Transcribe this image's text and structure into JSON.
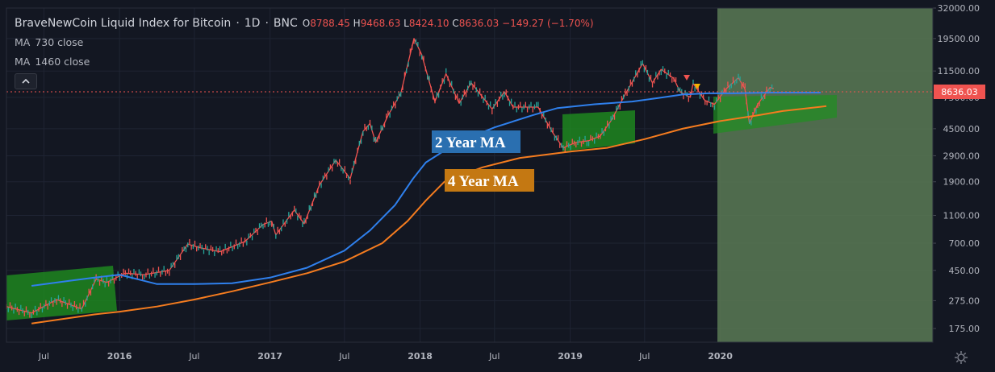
{
  "header": {
    "title": "BraveNewCoin Liquid Index for Bitcoin",
    "sep": "·",
    "interval": "1D",
    "exchange": "BNC",
    "ohlc": {
      "o_label": "O",
      "o_value": "8788.45",
      "h_label": "H",
      "h_value": "9468.63",
      "l_label": "L",
      "l_value": "8424.10",
      "c_label": "C",
      "c_value": "8636.03",
      "change": "−149.27 (−1.70%)"
    }
  },
  "indicators": [
    {
      "label": "MA",
      "params": "730 close"
    },
    {
      "label": "MA",
      "params": "1460 close"
    }
  ],
  "annotations": {
    "ma2": "2 Year MA",
    "ma4": "4 Year MA"
  },
  "price_tag": "8636.03",
  "colors": {
    "background": "#131722",
    "grid": "#1f2433",
    "ma730": "#2f80ed",
    "ma1460": "#f57c1f",
    "up_candle": "#26a69a",
    "down_candle": "#ef5350",
    "zone_green": "#1f8f1f",
    "projection_zone": "#5b7a55",
    "price_tag_bg": "#ef5350"
  },
  "chart_data": {
    "type": "line",
    "title": "BraveNewCoin Liquid Index for Bitcoin",
    "scale": "log",
    "ylim": [
      140,
      32000
    ],
    "y_ticks": [
      32000,
      19500,
      11500,
      7500,
      4500,
      2900,
      1900,
      1100,
      700,
      450,
      275,
      175
    ],
    "y_tick_labels": [
      "32000.00",
      "19500.00",
      "11500.00",
      "7500.00",
      "4500.00",
      "2900.00",
      "1900.00",
      "1100.00",
      "700.00",
      "450.00",
      "275.00",
      "175.00"
    ],
    "x_range": [
      "2015-04-01",
      "2021-06-01"
    ],
    "x_ticks": [
      {
        "date": "2015-07-01",
        "label": "Jul",
        "bold": false
      },
      {
        "date": "2016-01-01",
        "label": "2016",
        "bold": true
      },
      {
        "date": "2016-07-01",
        "label": "Jul",
        "bold": false
      },
      {
        "date": "2017-01-01",
        "label": "2017",
        "bold": true
      },
      {
        "date": "2017-07-01",
        "label": "Jul",
        "bold": false
      },
      {
        "date": "2018-01-01",
        "label": "2018",
        "bold": true
      },
      {
        "date": "2018-07-01",
        "label": "Jul",
        "bold": false
      },
      {
        "date": "2019-01-01",
        "label": "2019",
        "bold": true
      },
      {
        "date": "2019-07-01",
        "label": "Jul",
        "bold": false
      },
      {
        "date": "2020-01-01",
        "label": "2020",
        "bold": true
      }
    ],
    "price": {
      "x": [
        "2015-04-01",
        "2015-06-01",
        "2015-08-01",
        "2015-10-01",
        "2015-11-05",
        "2015-12-01",
        "2016-01-15",
        "2016-03-01",
        "2016-05-01",
        "2016-06-15",
        "2016-07-15",
        "2016-09-01",
        "2016-11-01",
        "2016-12-15",
        "2017-01-05",
        "2017-01-15",
        "2017-03-01",
        "2017-03-25",
        "2017-05-01",
        "2017-06-10",
        "2017-07-15",
        "2017-08-15",
        "2017-09-01",
        "2017-09-15",
        "2017-10-15",
        "2017-11-15",
        "2017-12-17",
        "2018-01-05",
        "2018-02-06",
        "2018-03-05",
        "2018-04-06",
        "2018-05-05",
        "2018-06-25",
        "2018-07-25",
        "2018-08-15",
        "2018-10-15",
        "2018-11-20",
        "2018-12-15",
        "2019-01-15",
        "2019-02-15",
        "2019-03-15",
        "2019-04-10",
        "2019-05-15",
        "2019-06-26",
        "2019-07-20",
        "2019-08-10",
        "2019-09-10",
        "2019-09-25",
        "2019-10-20",
        "2019-10-27",
        "2019-11-25",
        "2019-12-18",
        "2020-01-15",
        "2020-02-14",
        "2020-03-01",
        "2020-03-12",
        "2020-04-01",
        "2020-05-01",
        "2020-05-10"
      ],
      "y": [
        250,
        225,
        280,
        240,
        390,
        370,
        430,
        420,
        450,
        690,
        650,
        610,
        720,
        950,
        1000,
        800,
        1200,
        960,
        1800,
        2700,
        2000,
        4300,
        4900,
        3600,
        5600,
        8000,
        19500,
        15000,
        7000,
        11000,
        6800,
        9500,
        6200,
        8200,
        6400,
        6400,
        4200,
        3300,
        3600,
        3700,
        4000,
        5100,
        7900,
        13000,
        9500,
        11800,
        10200,
        8200,
        7500,
        9400,
        7100,
        6700,
        8600,
        10300,
        8600,
        4900,
        6700,
        8800,
        8636
      ]
    },
    "series": [
      {
        "name": "MA 730 close",
        "x": [
          "2015-06-01",
          "2015-09-01",
          "2015-11-01",
          "2016-01-01",
          "2016-04-01",
          "2016-07-01",
          "2016-10-01",
          "2017-01-01",
          "2017-04-01",
          "2017-07-01",
          "2017-09-01",
          "2017-11-01",
          "2017-12-15",
          "2018-01-15",
          "2018-04-01",
          "2018-07-01",
          "2018-10-01",
          "2018-12-01",
          "2019-03-01",
          "2019-06-01",
          "2019-08-01",
          "2019-10-01",
          "2019-12-01",
          "2020-02-01",
          "2020-05-01",
          "2020-09-01"
        ],
        "y": [
          350,
          380,
          400,
          420,
          360,
          360,
          365,
          400,
          470,
          620,
          860,
          1300,
          2000,
          2600,
          3600,
          4600,
          5600,
          6300,
          6700,
          7000,
          7400,
          7850,
          8000,
          8000,
          8100,
          8100
        ]
      },
      {
        "name": "MA 1460 close",
        "x": [
          "2015-06-01",
          "2015-11-01",
          "2016-01-01",
          "2016-04-01",
          "2016-07-01",
          "2016-10-01",
          "2017-01-01",
          "2017-04-01",
          "2017-07-01",
          "2017-10-01",
          "2017-12-01",
          "2018-01-15",
          "2018-03-01",
          "2018-06-01",
          "2018-09-01",
          "2019-01-01",
          "2019-04-01",
          "2019-07-01",
          "2019-10-01",
          "2020-01-01",
          "2020-04-01",
          "2020-06-01",
          "2020-09-15"
        ],
        "y": [
          190,
          220,
          230,
          250,
          280,
          320,
          370,
          430,
          520,
          700,
          1000,
          1400,
          1900,
          2400,
          2800,
          3100,
          3300,
          3800,
          4500,
          5100,
          5600,
          6000,
          6500
        ]
      }
    ]
  }
}
